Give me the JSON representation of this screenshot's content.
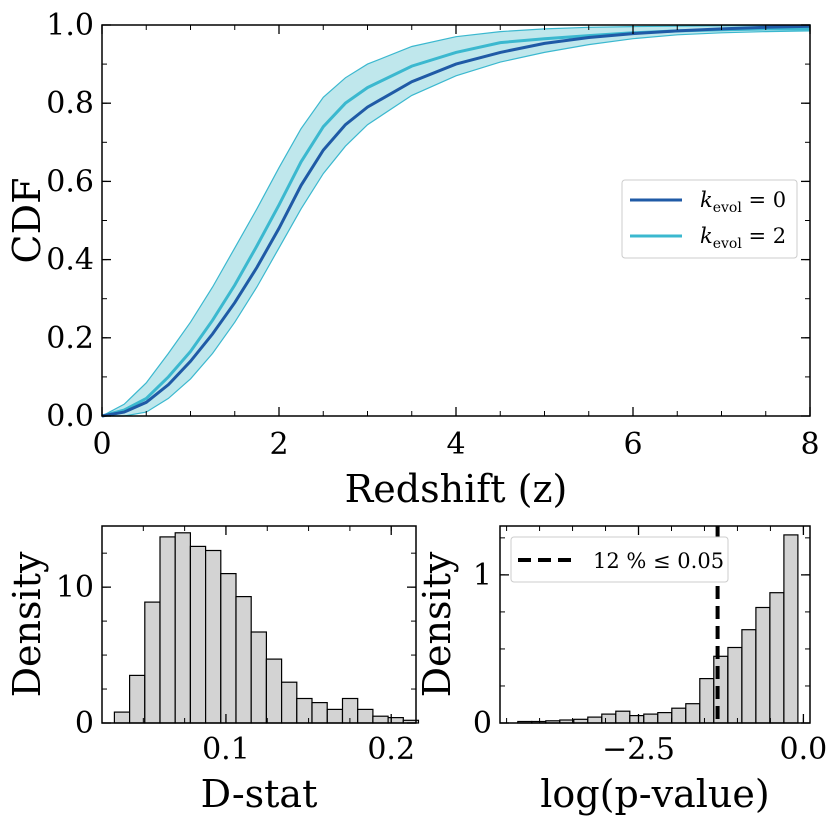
{
  "colors": {
    "k0_line": "#1f5aa6",
    "k2_line": "#3bb8cf",
    "k2_band": "#a9dfe6",
    "hist_fill": "#d3d3d3",
    "hist_edge": "#000000",
    "vline": "#000000"
  },
  "chart_data": [
    {
      "type": "line",
      "id": "cdf",
      "xlabel": "Redshift (z)",
      "ylabel": "CDF",
      "xlim": [
        0,
        8
      ],
      "ylim": [
        0,
        1.0
      ],
      "xticks": [
        0,
        2,
        4,
        6,
        8
      ],
      "xtick_labels": [
        "0",
        "2",
        "4",
        "6",
        "8"
      ],
      "yticks": [
        0.0,
        0.2,
        0.4,
        0.6,
        0.8,
        1.0
      ],
      "ytick_labels": [
        "0.0",
        "0.2",
        "0.4",
        "0.6",
        "0.8",
        "1.0"
      ],
      "legend": {
        "placement": "center-right",
        "entries": [
          {
            "symbol": "k",
            "subscript": "evol",
            "suffix": " = 0",
            "series": "k_evol_0"
          },
          {
            "symbol": "k",
            "subscript": "evol",
            "suffix": " = 2",
            "series": "k_evol_2"
          }
        ]
      },
      "series": [
        {
          "name": "k_evol_0",
          "x": [
            0,
            0.25,
            0.5,
            0.75,
            1.0,
            1.25,
            1.5,
            1.75,
            2.0,
            2.25,
            2.5,
            2.75,
            3.0,
            3.5,
            4.0,
            4.5,
            5.0,
            5.5,
            6.0,
            6.5,
            7.0,
            7.5,
            8.0
          ],
          "y": [
            0,
            0.01,
            0.035,
            0.08,
            0.14,
            0.21,
            0.29,
            0.38,
            0.48,
            0.59,
            0.68,
            0.745,
            0.79,
            0.855,
            0.9,
            0.93,
            0.953,
            0.968,
            0.978,
            0.985,
            0.99,
            0.994,
            0.997
          ]
        },
        {
          "name": "k_evol_2",
          "x": [
            0,
            0.25,
            0.5,
            0.75,
            1.0,
            1.25,
            1.5,
            1.75,
            2.0,
            2.25,
            2.5,
            2.75,
            3.0,
            3.5,
            4.0,
            4.5,
            5.0,
            5.5,
            6.0,
            6.5,
            7.0,
            7.5,
            8.0
          ],
          "y": [
            0,
            0.015,
            0.045,
            0.1,
            0.165,
            0.245,
            0.335,
            0.435,
            0.54,
            0.65,
            0.74,
            0.8,
            0.84,
            0.895,
            0.93,
            0.955,
            0.965,
            0.973,
            0.98,
            0.985,
            0.988,
            0.99,
            0.99
          ],
          "band_lower": [
            0,
            0.0,
            0.01,
            0.045,
            0.095,
            0.16,
            0.24,
            0.33,
            0.43,
            0.53,
            0.62,
            0.69,
            0.745,
            0.82,
            0.87,
            0.905,
            0.93,
            0.95,
            0.965,
            0.975,
            0.98,
            0.983,
            0.985
          ],
          "band_upper": [
            0,
            0.03,
            0.085,
            0.16,
            0.24,
            0.33,
            0.43,
            0.53,
            0.635,
            0.735,
            0.815,
            0.865,
            0.9,
            0.945,
            0.97,
            0.983,
            0.99,
            0.994,
            0.996,
            0.997,
            0.998,
            0.999,
            1.0
          ]
        }
      ]
    },
    {
      "type": "bar",
      "id": "dstat",
      "xlabel": "D-stat",
      "ylabel": "Density",
      "xlim": [
        0.025,
        0.215
      ],
      "ylim": [
        0,
        14.5
      ],
      "xticks": [
        0.1,
        0.2
      ],
      "xtick_labels": [
        "0.1",
        "0.2"
      ],
      "yticks": [
        0,
        10
      ],
      "ytick_labels": [
        "0",
        "10"
      ],
      "bin_start": 0.0325,
      "bin_width": 0.0092,
      "values": [
        0.8,
        3.5,
        8.9,
        13.7,
        14.0,
        13.0,
        12.7,
        11.0,
        9.3,
        6.7,
        4.7,
        3.0,
        1.8,
        1.5,
        1.0,
        1.8,
        1.0,
        0.5,
        0.4,
        0.2
      ]
    },
    {
      "type": "bar",
      "id": "pvalue",
      "xlabel": "log(p-value)",
      "ylabel": "Density",
      "xlim": [
        -4.6,
        0.1
      ],
      "ylim": [
        0,
        1.33
      ],
      "xticks": [
        -2.5,
        0.0
      ],
      "xtick_labels": [
        "−2.5",
        "0.0"
      ],
      "yticks": [
        0,
        1
      ],
      "ytick_labels": [
        "0",
        "1"
      ],
      "bin_start": -4.33,
      "bin_width": 0.2123,
      "values": [
        0.01,
        0.01,
        0.015,
        0.02,
        0.025,
        0.04,
        0.06,
        0.08,
        0.05,
        0.06,
        0.07,
        0.1,
        0.13,
        0.3,
        0.45,
        0.51,
        0.63,
        0.78,
        0.88,
        1.27
      ],
      "vline": {
        "x": -1.301,
        "label": "12 % ≤ 0.05"
      }
    }
  ]
}
